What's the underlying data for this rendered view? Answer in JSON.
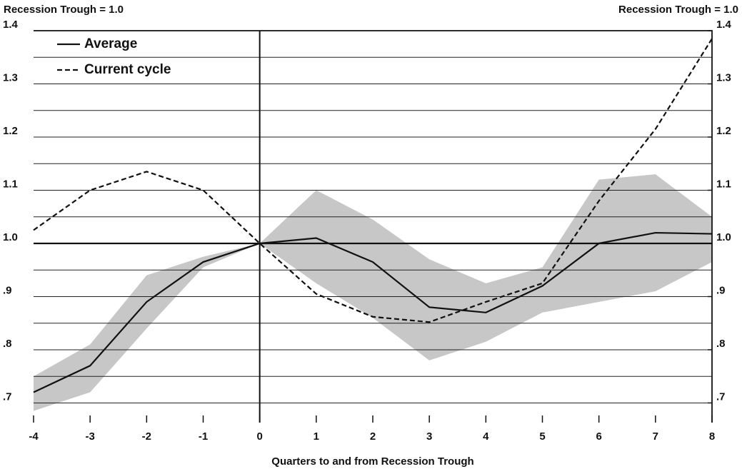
{
  "chart_data": {
    "type": "line",
    "ylabel": "Recession Trough = 1.0",
    "y2label": "Recession Trough = 1.0",
    "xlabel": "Quarters to and from Recession Trough",
    "x": [
      -4,
      -3,
      -2,
      -1,
      0,
      1,
      2,
      3,
      4,
      5,
      6,
      7,
      8
    ],
    "series": [
      {
        "name": "Average",
        "color": "#111111",
        "dash": "solid",
        "values": [
          0.72,
          0.77,
          0.89,
          0.965,
          1.0,
          1.01,
          0.965,
          0.88,
          0.87,
          0.92,
          1.0,
          1.02,
          1.018
        ]
      },
      {
        "name": "Current cycle",
        "color": "#111111",
        "dash": "dashed",
        "values": [
          1.025,
          1.1,
          1.135,
          1.1,
          1.0,
          0.905,
          0.862,
          0.852,
          0.89,
          0.925,
          1.08,
          1.215,
          1.385
        ]
      }
    ],
    "band": {
      "color": "#bdbdbd",
      "low": [
        0.685,
        0.72,
        0.84,
        0.955,
        1.0,
        0.925,
        0.86,
        0.78,
        0.815,
        0.87,
        0.89,
        0.91,
        0.965
      ],
      "high": [
        0.75,
        0.81,
        0.94,
        0.975,
        1.0,
        1.1,
        1.045,
        0.97,
        0.925,
        0.955,
        1.12,
        1.13,
        1.05
      ]
    },
    "xlim": [
      -4,
      8
    ],
    "xticks": [
      -4,
      -3,
      -2,
      -1,
      0,
      1,
      2,
      3,
      4,
      5,
      6,
      7,
      8
    ],
    "ylim": [
      0.663,
      1.4
    ],
    "yticks": [
      {
        "value": 0.7,
        "label": ".7"
      },
      {
        "value": 0.8,
        "label": ".8"
      },
      {
        "value": 0.9,
        "label": ".9"
      },
      {
        "value": 1.0,
        "label": "1.0"
      },
      1.1,
      1.2,
      1.3,
      1.4
    ],
    "y2lim": [
      0.663,
      1.4
    ],
    "y2ticks": [
      {
        "value": 0.7,
        "label": ".7"
      },
      {
        "value": 0.8,
        "label": ".8"
      },
      {
        "value": 0.9,
        "label": ".9"
      },
      {
        "value": 1.0,
        "label": "1.0"
      },
      1.1,
      1.2,
      1.3,
      1.4
    ],
    "minor_grid": [
      0.75,
      0.85,
      0.95,
      1.05,
      1.15,
      1.25,
      1.35
    ],
    "x_reference": 0,
    "y_reference": 1.0,
    "grid": true,
    "legend": "upper-left"
  }
}
